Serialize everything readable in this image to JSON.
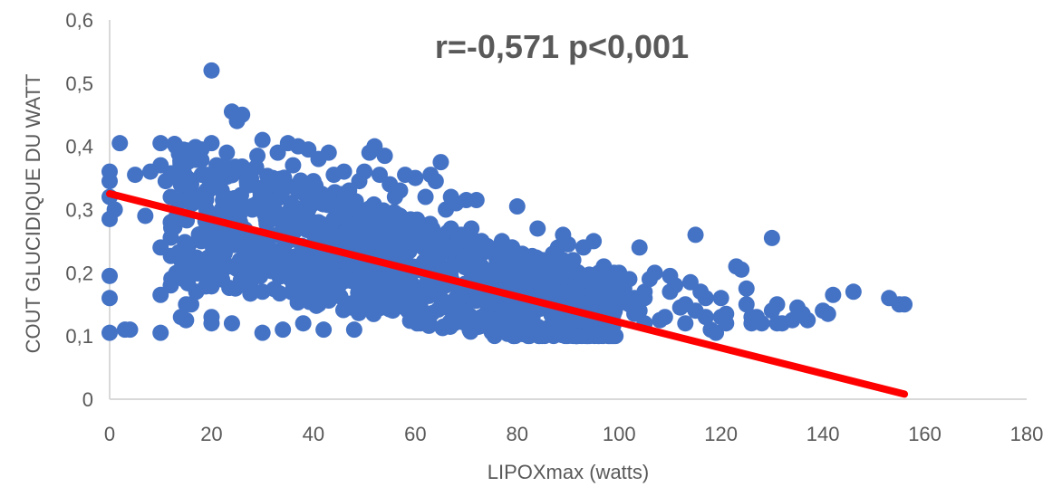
{
  "chart_data": {
    "type": "scatter",
    "annotation": "r=-0,571 p<0,001",
    "xlabel": "LIPOXmax (watts)",
    "ylabel": "COUT GLUCIDIQUE DU WATT",
    "xlim": [
      0,
      180
    ],
    "ylim": [
      0,
      0.6
    ],
    "x_ticks": [
      "0",
      "20",
      "40",
      "60",
      "80",
      "100",
      "120",
      "140",
      "160",
      "180"
    ],
    "y_ticks": [
      "0",
      "0,1",
      "0,2",
      "0,3",
      "0,4",
      "0,5",
      "0,6"
    ],
    "x_tick_values": [
      0,
      20,
      40,
      60,
      80,
      100,
      120,
      140,
      160,
      180
    ],
    "y_tick_values": [
      0,
      0.1,
      0.2,
      0.3,
      0.4,
      0.5,
      0.6
    ],
    "grid": false,
    "legend": "none",
    "colors": {
      "points": "#4472C4",
      "trendline": "#FF0000",
      "axis": "#d9d9d9",
      "text": "#595959"
    },
    "trendline": {
      "x": [
        0,
        156
      ],
      "y": [
        0.325,
        0.008
      ]
    },
    "points_x": [
      0,
      0,
      0,
      0,
      0,
      0,
      0,
      1,
      2,
      3,
      4,
      5,
      7,
      8,
      10,
      10,
      10,
      10,
      10,
      11,
      12,
      12,
      13,
      14,
      15,
      15,
      16,
      18,
      19,
      20,
      20,
      20,
      21,
      22,
      23,
      24,
      25,
      26,
      27,
      28,
      29,
      30,
      30,
      31,
      32,
      33,
      34,
      35,
      36,
      37,
      38,
      39,
      40,
      41,
      42,
      43,
      44,
      45,
      46,
      47,
      48,
      49,
      50,
      51,
      52,
      53,
      54,
      55,
      56,
      57,
      58,
      60,
      61,
      62,
      63,
      64,
      65,
      66,
      67,
      68,
      69,
      70,
      71,
      72,
      73,
      74,
      75,
      76,
      77,
      78,
      79,
      80,
      81,
      82,
      84,
      85,
      86,
      88,
      89,
      90,
      91,
      92,
      93,
      94,
      95,
      96,
      97,
      98,
      99,
      100,
      101,
      102,
      103,
      104,
      105,
      106,
      107,
      108,
      110,
      111,
      112,
      113,
      114,
      115,
      116,
      117,
      118,
      119,
      120,
      121,
      123,
      124,
      125,
      126,
      127,
      128,
      130,
      131,
      132,
      134,
      135,
      136,
      137,
      140,
      141,
      142,
      146,
      153,
      155,
      156,
      15,
      18,
      22,
      25,
      28,
      30,
      32,
      35,
      38,
      40,
      42,
      45,
      48,
      50,
      52,
      55,
      58,
      60,
      62,
      65,
      68,
      70,
      72,
      75,
      78,
      80,
      82,
      85,
      88,
      90,
      92,
      95,
      98,
      100,
      102,
      105,
      110,
      115,
      120,
      125,
      130,
      20,
      24,
      27,
      31,
      34,
      37,
      41,
      44,
      47,
      51,
      54,
      57,
      61,
      64,
      67,
      71,
      74,
      77,
      81,
      84,
      87,
      91,
      94,
      97,
      101,
      104,
      12,
      16,
      19,
      23,
      26,
      29,
      33,
      36,
      39,
      43,
      46,
      49,
      53,
      56,
      59,
      63,
      66,
      69,
      73,
      76,
      79,
      83,
      86,
      89,
      93,
      96,
      99,
      103,
      14,
      17,
      21,
      24,
      28,
      31,
      34,
      38,
      41,
      45,
      48,
      52,
      55,
      59,
      62,
      66,
      69,
      73,
      76,
      80,
      83,
      87,
      90,
      94,
      97,
      101,
      105,
      109,
      113,
      117,
      121,
      126,
      131
    ],
    "points_y": [
      0.36,
      0.345,
      0.32,
      0.285,
      0.195,
      0.16,
      0.105,
      0.3,
      0.405,
      0.11,
      0.11,
      0.355,
      0.29,
      0.36,
      0.405,
      0.37,
      0.24,
      0.165,
      0.105,
      0.345,
      0.32,
      0.28,
      0.4,
      0.22,
      0.15,
      0.125,
      0.34,
      0.395,
      0.355,
      0.52,
      0.405,
      0.12,
      0.37,
      0.33,
      0.39,
      0.455,
      0.44,
      0.45,
      0.34,
      0.3,
      0.385,
      0.105,
      0.41,
      0.26,
      0.35,
      0.39,
      0.11,
      0.405,
      0.37,
      0.4,
      0.12,
      0.395,
      0.345,
      0.38,
      0.11,
      0.39,
      0.355,
      0.32,
      0.36,
      0.33,
      0.11,
      0.345,
      0.36,
      0.39,
      0.4,
      0.355,
      0.385,
      0.34,
      0.32,
      0.33,
      0.355,
      0.35,
      0.12,
      0.32,
      0.355,
      0.345,
      0.375,
      0.3,
      0.32,
      0.31,
      0.25,
      0.315,
      0.27,
      0.315,
      0.25,
      0.24,
      0.12,
      0.22,
      0.18,
      0.17,
      0.24,
      0.305,
      0.23,
      0.215,
      0.27,
      0.2,
      0.17,
      0.24,
      0.26,
      0.245,
      0.22,
      0.16,
      0.24,
      0.12,
      0.25,
      0.2,
      0.185,
      0.13,
      0.16,
      0.2,
      0.175,
      0.19,
      0.135,
      0.24,
      0.17,
      0.19,
      0.2,
      0.125,
      0.195,
      0.18,
      0.145,
      0.12,
      0.185,
      0.26,
      0.17,
      0.16,
      0.11,
      0.105,
      0.13,
      0.135,
      0.21,
      0.205,
      0.175,
      0.12,
      0.13,
      0.12,
      0.255,
      0.15,
      0.12,
      0.125,
      0.145,
      0.135,
      0.125,
      0.14,
      0.135,
      0.165,
      0.17,
      0.16,
      0.15,
      0.15,
      0.2,
      0.25,
      0.3,
      0.27,
      0.22,
      0.17,
      0.31,
      0.25,
      0.2,
      0.28,
      0.23,
      0.18,
      0.29,
      0.24,
      0.19,
      0.27,
      0.22,
      0.17,
      0.26,
      0.21,
      0.16,
      0.24,
      0.19,
      0.14,
      0.23,
      0.18,
      0.14,
      0.22,
      0.17,
      0.13,
      0.2,
      0.16,
      0.13,
      0.19,
      0.15,
      0.12,
      0.17,
      0.14,
      0.16,
      0.15,
      0.14,
      0.13,
      0.12,
      0.35,
      0.3,
      0.26,
      0.33,
      0.28,
      0.24,
      0.31,
      0.27,
      0.22,
      0.29,
      0.25,
      0.2,
      0.27,
      0.23,
      0.19,
      0.25,
      0.21,
      0.17,
      0.23,
      0.19,
      0.16,
      0.21,
      0.17,
      0.14,
      0.18,
      0.15,
      0.3,
      0.24,
      0.2,
      0.31,
      0.26,
      0.21,
      0.3,
      0.25,
      0.2,
      0.29,
      0.24,
      0.19,
      0.27,
      0.23,
      0.18,
      0.26,
      0.21,
      0.17,
      0.24,
      0.2,
      0.16,
      0.22,
      0.18,
      0.15,
      0.2,
      0.16,
      0.13,
      0.17,
      0.27,
      0.21,
      0.17,
      0.28,
      0.23,
      0.18,
      0.15,
      0.29,
      0.24,
      0.21,
      0.16,
      0.27,
      0.22,
      0.19,
      0.14,
      0.25,
      0.2,
      0.17,
      0.13,
      0.22,
      0.18,
      0.15,
      0.12,
      0.19,
      0.16,
      0.13,
      0.15,
      0.13,
      0.12,
      0.13,
      0.12,
      0.12,
      0.13
    ]
  }
}
